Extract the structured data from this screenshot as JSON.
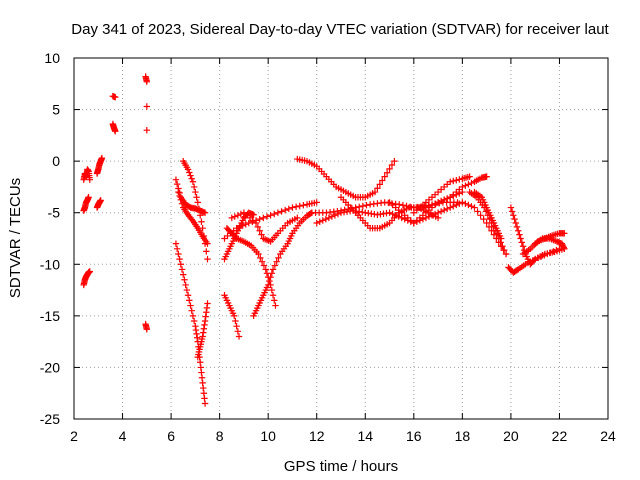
{
  "chart_data": {
    "type": "scatter",
    "title": "Day 341 of 2023, Sidereal Day-to-day VTEC variation (SDTVAR) for receiver laut",
    "xlabel": "GPS time / hours",
    "ylabel": "SDTVAR / TECUs",
    "xlim": [
      2,
      24
    ],
    "ylim": [
      -25,
      10
    ],
    "xticks": [
      "2",
      "4",
      "6",
      "8",
      "10",
      "12",
      "14",
      "16",
      "18",
      "20",
      "22",
      "24"
    ],
    "yticks": [
      "10",
      "5",
      "0",
      "-5",
      "-10",
      "-15",
      "-20",
      "-25"
    ],
    "grid": true,
    "marker": "+",
    "series_color": "#ff0000",
    "series": [
      {
        "name": "s1",
        "x": [
          2.4,
          2.45,
          2.5,
          2.55,
          2.6,
          2.65
        ],
        "y": [
          -1.8,
          -1.2,
          -1.5,
          -0.8,
          -1.0,
          -1.8
        ]
      },
      {
        "name": "s2",
        "x": [
          2.4,
          2.45,
          2.5,
          2.55,
          2.6
        ],
        "y": [
          -4.8,
          -4.5,
          -4.0,
          -3.8,
          -3.5
        ]
      },
      {
        "name": "s3",
        "x": [
          2.4,
          2.45,
          2.5,
          2.55,
          2.6,
          2.65
        ],
        "y": [
          -12.0,
          -11.5,
          -11.2,
          -11.0,
          -10.8,
          -10.7
        ]
      },
      {
        "name": "s4",
        "x": [
          2.95,
          3.0,
          3.05,
          3.1,
          3.15
        ],
        "y": [
          -1.2,
          -0.8,
          -0.3,
          0.0,
          0.3
        ]
      },
      {
        "name": "s5",
        "x": [
          2.95,
          3.0,
          3.05,
          3.1
        ],
        "y": [
          -4.5,
          -4.2,
          -4.0,
          -3.8
        ]
      },
      {
        "name": "s6",
        "x": [
          3.6,
          3.7
        ],
        "y": [
          6.3,
          6.2
        ]
      },
      {
        "name": "s7",
        "x": [
          3.6,
          3.65,
          3.7
        ],
        "y": [
          3.6,
          3.2,
          2.9
        ]
      },
      {
        "name": "s8",
        "x": [
          4.95,
          5.0
        ],
        "y": [
          8.2,
          7.7
        ]
      },
      {
        "name": "s9",
        "x": [
          5.0
        ],
        "y": [
          5.3
        ]
      },
      {
        "name": "s10",
        "x": [
          5.0
        ],
        "y": [
          3.0
        ]
      },
      {
        "name": "s11",
        "x": [
          4.95,
          5.0
        ],
        "y": [
          -15.8,
          -16.3
        ]
      },
      {
        "name": "s12",
        "x": [
          6.5,
          6.7,
          6.9,
          7.1,
          7.3,
          7.5
        ],
        "y": [
          0.0,
          -0.8,
          -2.0,
          -4.0,
          -6.5,
          -9.5
        ]
      },
      {
        "name": "s13",
        "x": [
          6.2,
          6.4,
          6.6,
          6.8,
          7.0,
          7.2,
          7.4
        ],
        "y": [
          -1.8,
          -3.5,
          -4.2,
          -4.5,
          -4.6,
          -4.8,
          -5.0
        ]
      },
      {
        "name": "s14",
        "x": [
          6.3,
          6.5,
          6.7,
          6.9,
          7.1,
          7.3,
          7.5
        ],
        "y": [
          -3.0,
          -4.5,
          -5.2,
          -5.8,
          -6.5,
          -7.3,
          -8.0
        ]
      },
      {
        "name": "s15",
        "x": [
          6.2,
          6.4,
          6.6,
          6.8,
          7.0,
          7.1,
          7.2,
          7.3,
          7.4
        ],
        "y": [
          -8.0,
          -10.0,
          -12.0,
          -14.0,
          -16.0,
          -17.5,
          -19.5,
          -21.5,
          -23.5
        ]
      },
      {
        "name": "s16",
        "x": [
          7.1,
          7.2,
          7.3,
          7.4,
          7.5
        ],
        "y": [
          -19.0,
          -18.0,
          -17.0,
          -15.5,
          -13.8
        ]
      },
      {
        "name": "s17",
        "x": [
          8.2,
          8.4,
          8.6,
          8.8
        ],
        "y": [
          -13.0,
          -14.0,
          -15.0,
          -17.0
        ]
      },
      {
        "name": "s18",
        "x": [
          8.3,
          8.5,
          8.7,
          9.0,
          9.3,
          9.6,
          9.9,
          10.1,
          10.3
        ],
        "y": [
          -6.5,
          -7.0,
          -7.5,
          -7.8,
          -8.2,
          -9.0,
          -10.5,
          -12.0,
          -14.0
        ]
      },
      {
        "name": "s19",
        "x": [
          8.2,
          8.4,
          8.6,
          8.8,
          9.0,
          9.2,
          9.4
        ],
        "y": [
          -9.5,
          -8.5,
          -7.5,
          -6.5,
          -5.5,
          -5.0,
          -5.2
        ]
      },
      {
        "name": "s20",
        "x": [
          9.4,
          9.6,
          9.8,
          10.0,
          10.2,
          10.5,
          10.8,
          11.0,
          11.3,
          11.6,
          11.8
        ],
        "y": [
          -15.0,
          -14.0,
          -13.0,
          -12.0,
          -10.5,
          -9.0,
          -8.0,
          -7.0,
          -6.0,
          -5.3,
          -5.0
        ]
      },
      {
        "name": "s21",
        "x": [
          8.5,
          9.0,
          9.5,
          9.8,
          10.1,
          10.4,
          10.8,
          11.2
        ],
        "y": [
          -5.5,
          -5.0,
          -6.0,
          -7.5,
          -7.8,
          -7.0,
          -6.0,
          -5.5
        ]
      },
      {
        "name": "s22",
        "x": [
          8.2,
          8.7,
          9.2,
          9.8,
          10.4,
          11.0,
          11.6,
          12.0
        ],
        "y": [
          -7.5,
          -6.5,
          -6.0,
          -5.5,
          -5.0,
          -4.5,
          -4.2,
          -4.0
        ]
      },
      {
        "name": "s23",
        "x": [
          11.2,
          11.6,
          12.0,
          12.4,
          12.8,
          13.2,
          13.6,
          14.0,
          14.4,
          14.8,
          15.2
        ],
        "y": [
          0.2,
          0.0,
          -0.5,
          -1.5,
          -2.5,
          -3.0,
          -3.5,
          -3.5,
          -3.0,
          -1.5,
          0.0
        ]
      },
      {
        "name": "s24",
        "x": [
          11.8,
          12.4,
          13.0,
          13.6,
          14.2,
          14.8,
          15.4,
          16.0,
          16.6,
          17.2,
          17.8
        ],
        "y": [
          -5.0,
          -5.0,
          -4.8,
          -4.5,
          -4.2,
          -4.0,
          -4.2,
          -4.5,
          -4.3,
          -4.0,
          -4.0
        ]
      },
      {
        "name": "s25",
        "x": [
          13.0,
          13.4,
          13.8,
          14.2,
          14.6,
          15.0,
          15.4,
          15.8,
          16.2,
          16.6,
          17.0
        ],
        "y": [
          -3.5,
          -4.5,
          -5.5,
          -6.5,
          -6.5,
          -6.0,
          -5.0,
          -4.5,
          -4.5,
          -5.0,
          -5.5
        ]
      },
      {
        "name": "s26",
        "x": [
          12.0,
          12.5,
          13.0,
          13.5,
          14.0,
          14.5,
          15.0,
          15.5,
          16.0,
          16.5,
          17.0,
          17.5,
          18.0
        ],
        "y": [
          -6.0,
          -5.5,
          -5.0,
          -4.8,
          -5.0,
          -5.2,
          -5.0,
          -5.5,
          -6.0,
          -5.0,
          -4.0,
          -3.5,
          -3.0
        ]
      },
      {
        "name": "s27",
        "x": [
          15.0,
          15.5,
          16.0,
          16.5,
          17.0,
          17.5,
          18.0,
          18.5,
          19.0,
          19.4,
          19.8
        ],
        "y": [
          -4.0,
          -5.0,
          -6.0,
          -5.5,
          -5.0,
          -4.5,
          -4.0,
          -4.5,
          -6.0,
          -7.5,
          -9.0
        ]
      },
      {
        "name": "s28",
        "x": [
          16.5,
          17.0,
          17.5,
          18.0,
          18.5,
          18.8,
          19.0
        ],
        "y": [
          -4.5,
          -4.0,
          -3.5,
          -2.5,
          -2.0,
          -1.6,
          -1.5
        ]
      },
      {
        "name": "s29",
        "x": [
          16.0,
          16.5,
          17.0,
          17.5,
          18.0,
          18.3
        ],
        "y": [
          -5.0,
          -4.0,
          -3.0,
          -2.0,
          -1.7,
          -1.5
        ]
      },
      {
        "name": "s30",
        "x": [
          18.3,
          18.6,
          18.9,
          19.2,
          19.5,
          19.8
        ],
        "y": [
          -3.0,
          -3.5,
          -4.5,
          -6.0,
          -7.5,
          -9.0
        ]
      },
      {
        "name": "s31",
        "x": [
          18.5,
          18.8,
          19.0,
          19.2,
          19.4,
          19.6
        ],
        "y": [
          -3.0,
          -3.5,
          -4.5,
          -5.5,
          -6.5,
          -7.5
        ]
      },
      {
        "name": "s32",
        "x": [
          20.0,
          20.2,
          20.4,
          20.6,
          20.8,
          21.0,
          21.5,
          22.0
        ],
        "y": [
          -4.5,
          -6.0,
          -7.5,
          -9.0,
          -10.0,
          -9.5,
          -9.0,
          -8.5
        ]
      },
      {
        "name": "s33",
        "x": [
          19.9,
          20.1,
          20.3,
          20.6,
          21.0,
          21.4,
          21.8,
          22.2
        ],
        "y": [
          -10.3,
          -10.8,
          -10.5,
          -10.0,
          -9.5,
          -9.0,
          -8.8,
          -8.5
        ]
      },
      {
        "name": "s34",
        "x": [
          20.5,
          20.8,
          21.1,
          21.4,
          21.7,
          22.0,
          22.2
        ],
        "y": [
          -9.0,
          -8.5,
          -7.8,
          -7.5,
          -7.2,
          -7.0,
          -7.0
        ]
      },
      {
        "name": "s35",
        "x": [
          21.0,
          21.3,
          21.6,
          21.9,
          22.1,
          22.2
        ],
        "y": [
          -8.0,
          -7.5,
          -7.5,
          -7.8,
          -8.0,
          -8.5
        ]
      }
    ]
  }
}
